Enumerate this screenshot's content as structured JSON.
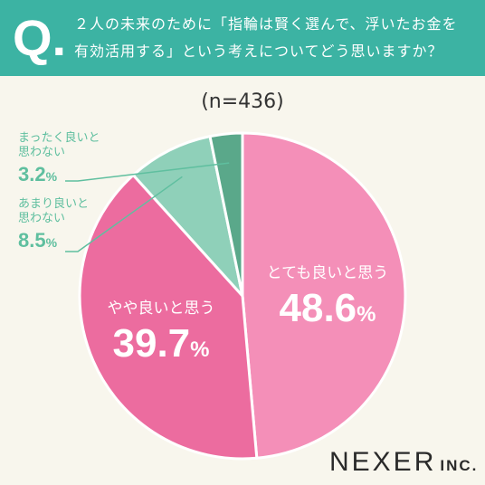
{
  "header": {
    "q_mark": "Q.",
    "question": "２人の未来のために「指輪は賢く選んで、浮いたお金を有効活用する」という考えについてどう思いますか？"
  },
  "n_label": "(n=436)",
  "colors": {
    "header_bg": "#3cb3a3",
    "background": "#f8f6ed",
    "slice_very_good": "#f48fb8",
    "slice_somewhat_good": "#ec6c9f",
    "slice_not_really": "#8fd0b9",
    "slice_not_at_all": "#5aa88a",
    "callout_text": "#5fbf9f"
  },
  "chart_data": {
    "type": "pie",
    "slices": [
      {
        "label": "とても良いと思う",
        "value": 48.6,
        "value_text": "48.6",
        "unit": "%"
      },
      {
        "label": "やや良いと思う",
        "value": 39.7,
        "value_text": "39.7",
        "unit": "%"
      },
      {
        "label": "あまり良いと思わない",
        "label_lines": [
          "あまり良いと",
          "思わない"
        ],
        "value": 8.5,
        "value_text": "8.5",
        "unit": "%"
      },
      {
        "label": "まったく良いと思わない",
        "label_lines": [
          "まったく良いと",
          "思わない"
        ],
        "value": 3.2,
        "value_text": "3.2",
        "unit": "%"
      }
    ]
  },
  "logo": {
    "main": "NEXER",
    "suffix": "INC."
  }
}
